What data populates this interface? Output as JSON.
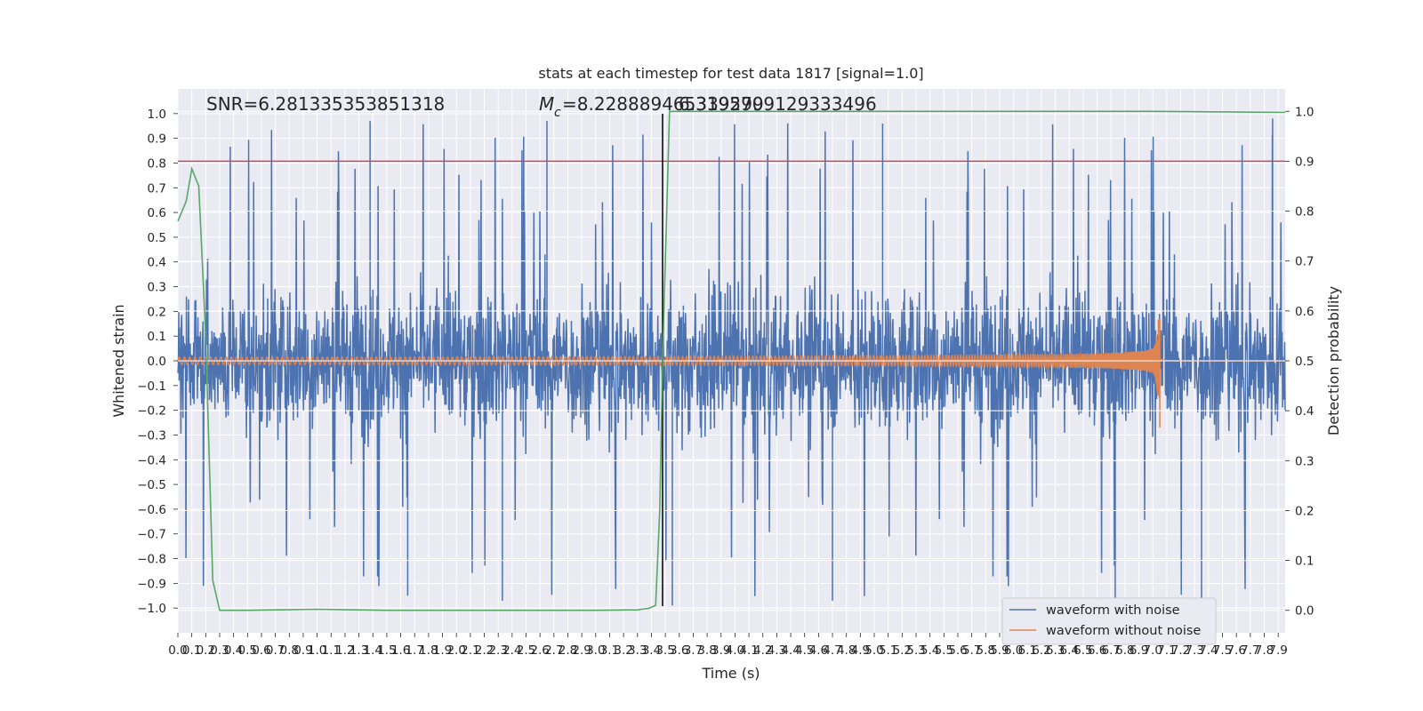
{
  "chart_data": {
    "type": "line",
    "title": "stats at each timestep for test data 1817 [signal=1.0]",
    "xlabel": "Time (s)",
    "ylabel": "Whitened strain",
    "y2label": "Detection probability",
    "xlim": [
      0.0,
      7.95
    ],
    "ylim": [
      -1.1,
      1.1
    ],
    "y2lim": [
      -0.045,
      1.045
    ],
    "grid": true,
    "legend_position": "lower-right",
    "x_tick_labels": [
      "0.0",
      "0.1",
      "0.2",
      "0.3",
      "0.4",
      "0.5",
      "0.6",
      "0.7",
      "0.8",
      "0.9",
      "1.0",
      "1.1",
      "1.2",
      "1.3",
      "1.4",
      "1.5",
      "1.6",
      "1.7",
      "1.8",
      "1.9",
      "2.0",
      "2.1",
      "2.2",
      "2.3",
      "2.4",
      "2.5",
      "2.6",
      "2.7",
      "2.8",
      "2.9",
      "3.0",
      "3.1",
      "3.2",
      "3.3",
      "3.4",
      "3.5",
      "3.6",
      "3.7",
      "3.8",
      "3.9",
      "4.0",
      "4.1",
      "4.2",
      "4.3",
      "4.4",
      "4.5",
      "4.6",
      "4.7",
      "4.8",
      "4.9",
      "5.0",
      "5.1",
      "5.2",
      "5.3",
      "5.4",
      "5.5",
      "5.6",
      "5.7",
      "5.8",
      "5.9",
      "6.0",
      "6.1",
      "6.2",
      "6.3",
      "6.4",
      "6.5",
      "6.6",
      "6.7",
      "6.8",
      "6.9",
      "7.0",
      "7.1",
      "7.2",
      "7.3",
      "7.4",
      "7.5",
      "7.6",
      "7.7",
      "7.8",
      "7.9"
    ],
    "y_tick_labels": [
      "−1.0",
      "−0.9",
      "−0.8",
      "−0.7",
      "−0.6",
      "−0.5",
      "−0.4",
      "−0.3",
      "−0.2",
      "−0.1",
      "0.0",
      "0.1",
      "0.2",
      "0.3",
      "0.4",
      "0.5",
      "0.6",
      "0.7",
      "0.8",
      "0.9",
      "1.0"
    ],
    "y2_tick_labels": [
      "0.0",
      "0.1",
      "0.2",
      "0.3",
      "0.4",
      "0.5",
      "0.6",
      "0.7",
      "0.8",
      "0.9",
      "1.0"
    ],
    "annotations": {
      "snr": "SNR=6.281335353851318",
      "mc_symbol": "M",
      "mc_subscript": "c",
      "mc_value_a": "=8.228889465339299",
      "mc_value_b": "6.3195709129333496"
    },
    "threshold": {
      "value": 0.9,
      "axis": "y2",
      "color": "#c44e52"
    },
    "detection_marker": {
      "x": 3.48,
      "color": "#000000"
    },
    "series": [
      {
        "name": "waveform with noise",
        "color": "#4c72b0",
        "axis": "y",
        "envelope": {
          "upper_typical": 0.45,
          "upper_max": 0.98,
          "lower_typical": -0.45,
          "lower_min": -1.0
        }
      },
      {
        "name": "waveform without noise",
        "color": "#dd8452",
        "axis": "y",
        "chirp": {
          "start_amplitude": 0.015,
          "merger_time": 7.05,
          "peak_positive": 0.17,
          "peak_negative": -0.27,
          "ringdown_level": 0.0
        }
      },
      {
        "name": "detection probability",
        "color": "#55a868",
        "axis": "y2",
        "x": [
          0.0,
          0.06,
          0.1,
          0.15,
          0.2,
          0.25,
          0.3,
          0.4,
          0.5,
          1.0,
          1.5,
          2.0,
          2.5,
          3.0,
          3.3,
          3.38,
          3.43,
          3.46,
          3.48,
          3.5,
          3.53,
          3.55,
          3.6,
          4.0,
          5.0,
          6.0,
          7.0,
          7.95
        ],
        "values": [
          0.78,
          0.82,
          0.885,
          0.85,
          0.55,
          0.06,
          0.0,
          0.0,
          0.0,
          0.002,
          0.0,
          0.0,
          0.0,
          0.0,
          0.001,
          0.004,
          0.01,
          0.2,
          0.5,
          0.7,
          1.0,
          1.0,
          1.0,
          1.0,
          1.0,
          1.0,
          1.0,
          0.998
        ]
      }
    ]
  }
}
